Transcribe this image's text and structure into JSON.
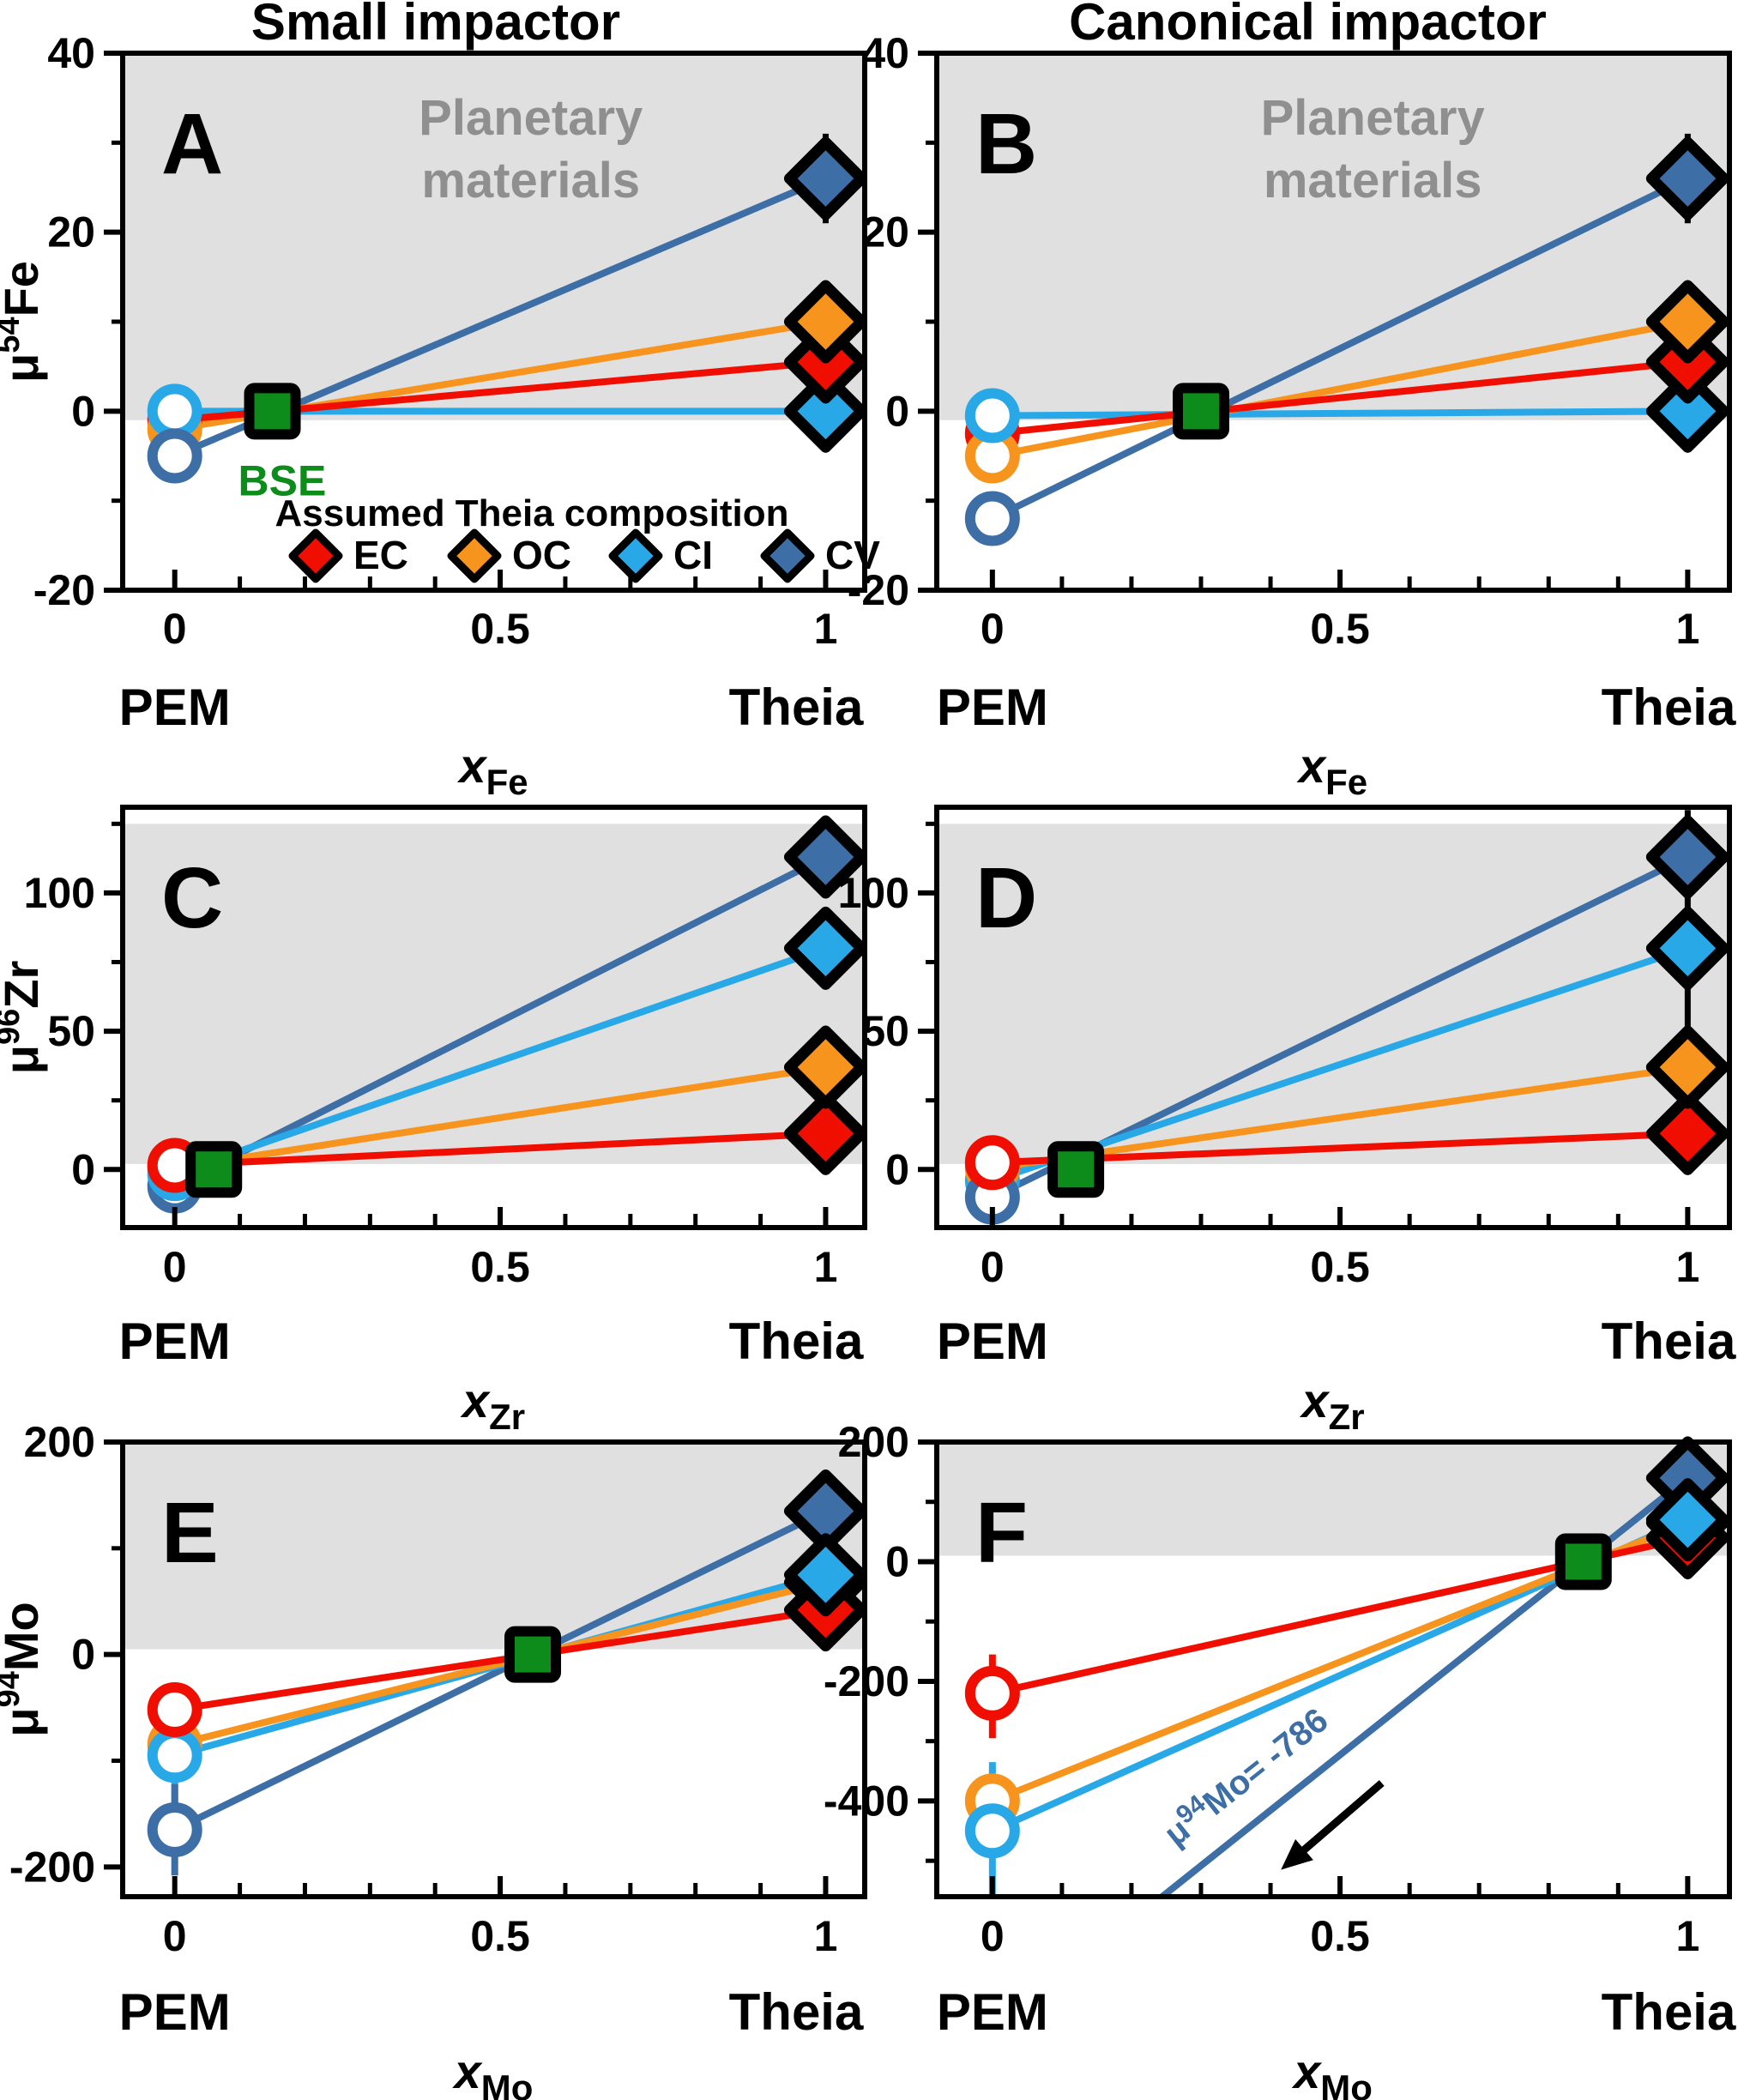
{
  "header": {
    "left_title": "Small impactor",
    "right_title": "Canonical impactor"
  },
  "colors": {
    "EC": "#ef0e00",
    "OC": "#f7941e",
    "CI": "#29a8e8",
    "CV": "#3d6ea5",
    "BSE": "#0d8c1b",
    "shade": "#e0e0e0",
    "gray_text": "#8f8f8f",
    "black": "#000000"
  },
  "labels": {
    "pem": "PEM",
    "theia": "Theia",
    "bse": "BSE",
    "planetary_line1": "Planetary",
    "planetary_line2": "materials"
  },
  "legend": {
    "title": "Assumed Theia composition",
    "items": [
      {
        "key": "EC",
        "label": "EC"
      },
      {
        "key": "OC",
        "label": "OC"
      },
      {
        "key": "CI",
        "label": "CI"
      },
      {
        "key": "CV",
        "label": "CV"
      }
    ]
  },
  "chart_data": [
    {
      "type": "scatter-line",
      "letter": "A",
      "row": 0,
      "col": 0,
      "x_axis": {
        "label_sym": "x",
        "label_sub": "Fe",
        "ticks": [
          0,
          0.5,
          1
        ],
        "tick_labels": [
          "0",
          "0.5",
          "1"
        ],
        "minor_step": 0.1,
        "xlim": [
          -0.08,
          1.06
        ]
      },
      "y_axis": {
        "mu": "μ",
        "sup": "54",
        "element": "Fe",
        "ticks": [
          40,
          20,
          0,
          -20
        ],
        "tick_labels": [
          "40",
          "20",
          "0",
          "-20"
        ],
        "minor_step": 10,
        "ylim": [
          -20,
          40
        ]
      },
      "shade": [
        -1,
        40
      ],
      "show_planetary": true,
      "show_legend": true,
      "show_bse_label": true,
      "bse": {
        "x": 0.15,
        "y": 0
      },
      "series": [
        {
          "key": "EC",
          "pem": {
            "y": -1
          },
          "theia": {
            "y": 5.5
          }
        },
        {
          "key": "OC",
          "pem": {
            "y": -2
          },
          "theia": {
            "y": 10
          }
        },
        {
          "key": "CI",
          "pem": {
            "y": 0
          },
          "theia": {
            "y": 0
          }
        },
        {
          "key": "CV",
          "pem": {
            "y": -5
          },
          "theia": {
            "y": 26,
            "err": [
              21,
              31
            ]
          }
        }
      ],
      "circle_order": [
        "EC",
        "OC",
        "CI",
        "CV"
      ],
      "diamond_order": [
        "CI",
        "EC",
        "OC",
        "CV"
      ]
    },
    {
      "type": "scatter-line",
      "letter": "B",
      "row": 0,
      "col": 1,
      "x_axis": {
        "label_sym": "x",
        "label_sub": "Fe",
        "ticks": [
          0,
          0.5,
          1
        ],
        "tick_labels": [
          "0",
          "0.5",
          "1"
        ],
        "minor_step": 0.1,
        "xlim": [
          -0.08,
          1.06
        ]
      },
      "y_axis": {
        "ticks": [
          40,
          20,
          0,
          -20
        ],
        "tick_labels": [
          "40",
          "20",
          "0",
          "-20"
        ],
        "minor_step": 10,
        "ylim": [
          -20,
          40
        ]
      },
      "shade": [
        -1,
        40
      ],
      "show_planetary": true,
      "show_legend": false,
      "show_bse_label": false,
      "bse": {
        "x": 0.3,
        "y": 0
      },
      "series": [
        {
          "key": "EC",
          "pem": {
            "y": -2.5
          },
          "theia": {
            "y": 5.5
          }
        },
        {
          "key": "OC",
          "pem": {
            "y": -5
          },
          "theia": {
            "y": 10
          }
        },
        {
          "key": "CI",
          "pem": {
            "y": -0.5
          },
          "theia": {
            "y": 0
          }
        },
        {
          "key": "CV",
          "pem": {
            "y": -12,
            "err": [
              -14.5,
              -9.5
            ]
          },
          "theia": {
            "y": 26,
            "err": [
              21,
              31
            ]
          }
        }
      ],
      "circle_order": [
        "EC",
        "OC",
        "CI",
        "CV"
      ],
      "diamond_order": [
        "CI",
        "EC",
        "OC",
        "CV"
      ]
    },
    {
      "type": "scatter-line",
      "letter": "C",
      "row": 1,
      "col": 0,
      "x_axis": {
        "label_sym": "x",
        "label_sub": "Zr",
        "ticks": [
          0,
          0.5,
          1
        ],
        "tick_labels": [
          "0",
          "0.5",
          "1"
        ],
        "minor_step": 0.1,
        "xlim": [
          -0.08,
          1.06
        ]
      },
      "y_axis": {
        "mu": "μ",
        "sup": "96",
        "element": "Zr",
        "ticks": [
          100,
          50,
          0
        ],
        "tick_labels": [
          "100",
          "50",
          "0"
        ],
        "minor_step": 25,
        "ylim": [
          -21,
          131
        ]
      },
      "shade": [
        2,
        125
      ],
      "show_planetary": false,
      "show_legend": false,
      "show_bse_label": false,
      "bse": {
        "x": 0.06,
        "y": 0
      },
      "series": [
        {
          "key": "EC",
          "pem": {
            "y": 1.5
          },
          "theia": {
            "y": 13
          }
        },
        {
          "key": "OC",
          "pem": {
            "y": 0.5
          },
          "theia": {
            "y": 37
          }
        },
        {
          "key": "CI",
          "pem": {
            "y": -1.5
          },
          "theia": {
            "y": 80
          }
        },
        {
          "key": "CV",
          "pem": {
            "y": -6
          },
          "theia": {
            "y": 113
          }
        }
      ],
      "circle_order": [
        "CV",
        "OC",
        "CI",
        "EC"
      ],
      "diamond_order": [
        "EC",
        "OC",
        "CI",
        "CV"
      ]
    },
    {
      "type": "scatter-line",
      "letter": "D",
      "row": 1,
      "col": 1,
      "x_axis": {
        "label_sym": "x",
        "label_sub": "Zr",
        "ticks": [
          0,
          0.5,
          1
        ],
        "tick_labels": [
          "0",
          "0.5",
          "1"
        ],
        "minor_step": 0.1,
        "xlim": [
          -0.08,
          1.06
        ]
      },
      "y_axis": {
        "ticks": [
          100,
          50,
          0
        ],
        "tick_labels": [
          "100",
          "50",
          "0"
        ],
        "minor_step": 25,
        "ylim": [
          -21,
          131
        ]
      },
      "shade": [
        2,
        125
      ],
      "show_planetary": false,
      "show_legend": false,
      "show_bse_label": false,
      "bse": {
        "x": 0.12,
        "y": 0
      },
      "series": [
        {
          "key": "EC",
          "pem": {
            "y": 2.5
          },
          "theia": {
            "y": 13
          }
        },
        {
          "key": "OC",
          "pem": {
            "y": 0.5
          },
          "theia": {
            "y": 37
          }
        },
        {
          "key": "CI",
          "pem": {
            "y": -4
          },
          "theia": {
            "y": 80
          }
        },
        {
          "key": "CV",
          "pem": {
            "y": -10
          },
          "theia": {
            "y": 113,
            "err": [
              48,
              130
            ]
          }
        }
      ],
      "circle_order": [
        "CI",
        "OC",
        "CV",
        "EC"
      ],
      "diamond_order": [
        "EC",
        "OC",
        "CI",
        "CV"
      ]
    },
    {
      "type": "scatter-line",
      "letter": "E",
      "row": 2,
      "col": 0,
      "x_axis": {
        "label_sym": "x",
        "label_sub": "Mo",
        "ticks": [
          0,
          0.5,
          1
        ],
        "tick_labels": [
          "0",
          "0.5",
          "1"
        ],
        "minor_step": 0.1,
        "xlim": [
          -0.08,
          1.06
        ]
      },
      "y_axis": {
        "mu": "μ",
        "sup": "94",
        "element": "Mo",
        "ticks": [
          200,
          0,
          -200
        ],
        "tick_labels": [
          "200",
          "0",
          "-200"
        ],
        "minor_step": 100,
        "ylim": [
          -228,
          200
        ]
      },
      "shade": [
        5,
        200
      ],
      "show_planetary": false,
      "show_legend": false,
      "show_bse_label": false,
      "bse": {
        "x": 0.55,
        "y": 0
      },
      "series": [
        {
          "key": "EC",
          "pem": {
            "y": -52
          },
          "theia": {
            "y": 42
          }
        },
        {
          "key": "OC",
          "pem": {
            "y": -85
          },
          "theia": {
            "y": 68
          }
        },
        {
          "key": "CI",
          "pem": {
            "y": -95,
            "err": [
              -152,
              -38
            ]
          },
          "theia": {
            "y": 75
          }
        },
        {
          "key": "CV",
          "pem": {
            "y": -165,
            "err": [
              -208,
              -122
            ]
          },
          "theia": {
            "y": 135,
            "err": [
              110,
              160
            ]
          }
        }
      ],
      "circle_order": [
        "OC",
        "CI",
        "EC",
        "CV"
      ],
      "diamond_order": [
        "OC",
        "EC",
        "CV",
        "CI"
      ]
    },
    {
      "type": "scatter-line",
      "letter": "F",
      "row": 2,
      "col": 1,
      "x_axis": {
        "label_sym": "x",
        "label_sub": "Mo",
        "ticks": [
          0,
          0.5,
          1
        ],
        "tick_labels": [
          "0",
          "0.5",
          "1"
        ],
        "minor_step": 0.1,
        "xlim": [
          -0.08,
          1.06
        ]
      },
      "y_axis": {
        "ticks": [
          200,
          0,
          -200,
          -400
        ],
        "tick_labels": [
          "200",
          "0",
          "-200",
          "-400"
        ],
        "minor_step": 100,
        "ylim": [
          -560,
          200
        ]
      },
      "shade": [
        10,
        200
      ],
      "show_planetary": false,
      "show_legend": false,
      "show_bse_label": false,
      "bse": {
        "x": 0.85,
        "y": 0
      },
      "series": [
        {
          "key": "EC",
          "pem": {
            "y": -220,
            "err": [
              -295,
              -155
            ]
          },
          "theia": {
            "y": 40
          }
        },
        {
          "key": "OC",
          "pem": {
            "y": -400,
            "err": [
              -455,
              -345
            ]
          },
          "theia": {
            "y": 65
          }
        },
        {
          "key": "CI",
          "pem": {
            "y": -450,
            "err": [
              -575,
              -335
            ]
          },
          "theia": {
            "y": 70
          }
        },
        {
          "key": "CV",
          "pem": {
            "y": -786,
            "marker": false
          },
          "theia": {
            "y": 140
          }
        }
      ],
      "circle_order": [
        "OC",
        "CI",
        "EC"
      ],
      "diamond_order": [
        "OC",
        "EC",
        "CV",
        "CI"
      ],
      "annotation": {
        "mu": "μ",
        "sup": "94",
        "rest": "Mo= -786",
        "x": 0.375,
        "y": -375,
        "angle": -38.5,
        "arrow": {
          "x1": 0.56,
          "y1": -370,
          "x2": 0.415,
          "y2": -515
        }
      }
    }
  ]
}
